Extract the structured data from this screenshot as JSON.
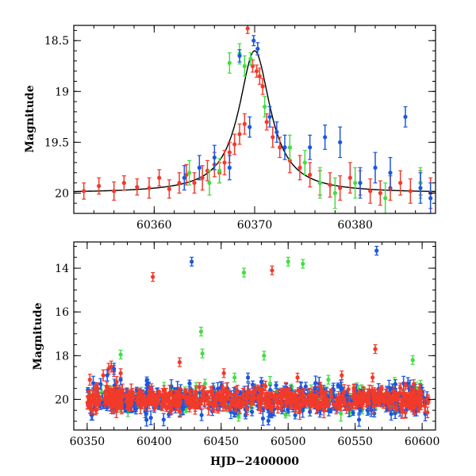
{
  "colors": {
    "red": "#f23a2a",
    "green": "#44dd44",
    "blue": "#1b57e0",
    "fit": "#000000"
  },
  "chart_data": [
    {
      "type": "scatter",
      "title": "",
      "xlabel": "",
      "ylabel": "Magnitude",
      "xlim": [
        60352,
        60388
      ],
      "ylim": [
        20.2,
        18.35
      ],
      "y_inverted": true,
      "xticks": [
        60360,
        60370,
        60380
      ],
      "yticks": [
        18.5,
        19,
        19.5,
        20
      ],
      "yticklabels": [
        "18.5",
        "19",
        "19.5",
        "20"
      ],
      "grid": false,
      "legend": "none",
      "fit_curve": {
        "type": "line",
        "peak_x": 60370.0,
        "peak_mag": 18.6,
        "baseline_mag": 20.0,
        "note": "microlensing-like fit curve (black line)"
      },
      "series": [
        {
          "color": "red",
          "points": [
            [
              60353.0,
              19.98,
              0.08
            ],
            [
              60354.5,
              19.93,
              0.08
            ],
            [
              60356.0,
              19.98,
              0.09
            ],
            [
              60357.0,
              19.9,
              0.07
            ],
            [
              60358.3,
              19.94,
              0.08
            ],
            [
              60359.5,
              19.95,
              0.1
            ],
            [
              60360.5,
              19.85,
              0.08
            ],
            [
              60361.5,
              19.96,
              0.09
            ],
            [
              60362.5,
              19.9,
              0.1
            ],
            [
              60363.2,
              19.82,
              0.1
            ],
            [
              60364.0,
              19.9,
              0.1
            ],
            [
              60364.8,
              19.85,
              0.12
            ],
            [
              60365.3,
              19.78,
              0.1
            ],
            [
              60366.0,
              19.72,
              0.12
            ],
            [
              60366.5,
              19.8,
              0.1
            ],
            [
              60367.0,
              19.7,
              0.12
            ],
            [
              60367.5,
              19.6,
              0.1
            ],
            [
              60368.0,
              19.52,
              0.1
            ],
            [
              60368.5,
              19.42,
              0.1
            ],
            [
              60369.0,
              19.32,
              0.1
            ],
            [
              60369.3,
              18.38,
              0.05
            ],
            [
              60369.8,
              18.75,
              0.06
            ],
            [
              60370.2,
              18.8,
              0.06
            ],
            [
              60370.5,
              18.85,
              0.08
            ],
            [
              60370.8,
              18.95,
              0.08
            ],
            [
              60371.2,
              19.3,
              0.08
            ],
            [
              60371.8,
              19.45,
              0.1
            ],
            [
              60372.5,
              19.55,
              0.1
            ],
            [
              60373.5,
              19.68,
              0.12
            ],
            [
              60374.5,
              19.75,
              0.12
            ],
            [
              60375.5,
              19.82,
              0.12
            ],
            [
              60376.5,
              19.9,
              0.12
            ],
            [
              60377.5,
              19.92,
              0.12
            ],
            [
              60378.5,
              19.95,
              0.12
            ],
            [
              60379.5,
              19.85,
              0.15
            ],
            [
              60380.5,
              19.9,
              0.12
            ],
            [
              60381.5,
              19.98,
              0.12
            ],
            [
              60382.5,
              20.0,
              0.12
            ],
            [
              60383.5,
              19.95,
              0.12
            ],
            [
              60384.5,
              19.9,
              0.12
            ],
            [
              60385.5,
              19.98,
              0.12
            ],
            [
              60386.5,
              19.9,
              0.12
            ],
            [
              60387.5,
              20.0,
              0.15
            ]
          ]
        },
        {
          "color": "green",
          "points": [
            [
              60363.5,
              19.8,
              0.12
            ],
            [
              60365.5,
              19.9,
              0.12
            ],
            [
              60366.5,
              19.78,
              0.12
            ],
            [
              60367.5,
              18.72,
              0.1
            ],
            [
              60368.5,
              18.63,
              0.1
            ],
            [
              60369.0,
              18.75,
              0.1
            ],
            [
              60369.6,
              18.68,
              0.06
            ],
            [
              60371.0,
              19.15,
              0.1
            ],
            [
              60373.5,
              19.55,
              0.12
            ],
            [
              60375.0,
              19.7,
              0.12
            ],
            [
              60376.5,
              19.9,
              0.15
            ],
            [
              60378.0,
              20.0,
              0.15
            ],
            [
              60380.0,
              19.9,
              0.15
            ],
            [
              60383.0,
              20.05,
              0.15
            ],
            [
              60386.5,
              19.9,
              0.15
            ]
          ]
        },
        {
          "color": "blue",
          "points": [
            [
              60363.0,
              19.85,
              0.12
            ],
            [
              60364.5,
              19.75,
              0.12
            ],
            [
              60366.0,
              19.65,
              0.12
            ],
            [
              60367.5,
              19.75,
              0.12
            ],
            [
              60368.5,
              18.65,
              0.06
            ],
            [
              60369.5,
              19.35,
              0.1
            ],
            [
              60369.9,
              18.5,
              0.05
            ],
            [
              60370.3,
              18.58,
              0.06
            ],
            [
              60371.5,
              19.25,
              0.1
            ],
            [
              60372.2,
              19.4,
              0.1
            ],
            [
              60373.0,
              19.55,
              0.12
            ],
            [
              60375.5,
              19.55,
              0.12
            ],
            [
              60377.0,
              19.45,
              0.12
            ],
            [
              60378.5,
              19.5,
              0.15
            ],
            [
              60380.5,
              19.9,
              0.15
            ],
            [
              60382.0,
              19.75,
              0.15
            ],
            [
              60383.5,
              19.8,
              0.15
            ],
            [
              60385.0,
              19.25,
              0.1
            ],
            [
              60386.5,
              19.95,
              0.15
            ],
            [
              60387.5,
              20.05,
              0.15
            ]
          ]
        }
      ]
    },
    {
      "type": "scatter",
      "title": "",
      "xlabel": "HJD−2400000",
      "ylabel": "Magnitude",
      "xlim": [
        60340,
        60610
      ],
      "ylim": [
        21.4,
        12.8
      ],
      "y_inverted": true,
      "xticks": [
        60350,
        60400,
        60450,
        60500,
        60550,
        60600
      ],
      "yticks": [
        14,
        16,
        18,
        20
      ],
      "yticklabels": [
        "14",
        "16",
        "18",
        "20"
      ],
      "grid": false,
      "legend": "none",
      "baseline_mag": 20.0,
      "outbursts": [
        {
          "color": "red",
          "x": [
            60352,
            60354,
            60358,
            60362,
            60366,
            60368,
            60370,
            60372,
            60374,
            60376
          ],
          "y": [
            19.1,
            19.8,
            19.5,
            18.9,
            18.6,
            18.5,
            18.7,
            19.2,
            19.6,
            19.9
          ]
        },
        {
          "color": "blue",
          "x": [
            60360,
            60365,
            60370,
            60375
          ],
          "y": [
            19.3,
            18.9,
            18.6,
            19.1
          ]
        }
      ],
      "series": [
        {
          "color": "red",
          "points": [
            [
              60399,
              14.4
            ],
            [
              60488,
              14.1
            ],
            [
              60565,
              17.7
            ],
            [
              60419,
              18.3
            ],
            [
              60452,
              18.8
            ],
            [
              60507,
              19.0
            ],
            [
              60540,
              18.9
            ],
            [
              60563,
              19.0
            ],
            [
              60375,
              18.8
            ]
          ]
        },
        {
          "color": "green",
          "points": [
            [
              60375,
              17.95
            ],
            [
              60467,
              14.2
            ],
            [
              60500,
              13.7
            ],
            [
              60511,
              13.8
            ],
            [
              60435,
              16.9
            ],
            [
              60436,
              17.9
            ],
            [
              60482,
              18.0
            ],
            [
              60593,
              18.2
            ],
            [
              60460,
              19.0
            ],
            [
              60530,
              19.1
            ]
          ]
        },
        {
          "color": "blue",
          "points": [
            [
              60428,
              13.7
            ],
            [
              60566,
              13.2
            ],
            [
              60395,
              19.3
            ],
            [
              60480,
              19.2
            ],
            [
              60470,
              19.0
            ],
            [
              60520,
              19.5
            ],
            [
              60580,
              19.3
            ]
          ]
        }
      ]
    }
  ],
  "labels": {
    "top_ylabel": "Magnitude",
    "bottom_ylabel": "Magnitude",
    "bottom_xlabel": "HJD−2400000"
  }
}
